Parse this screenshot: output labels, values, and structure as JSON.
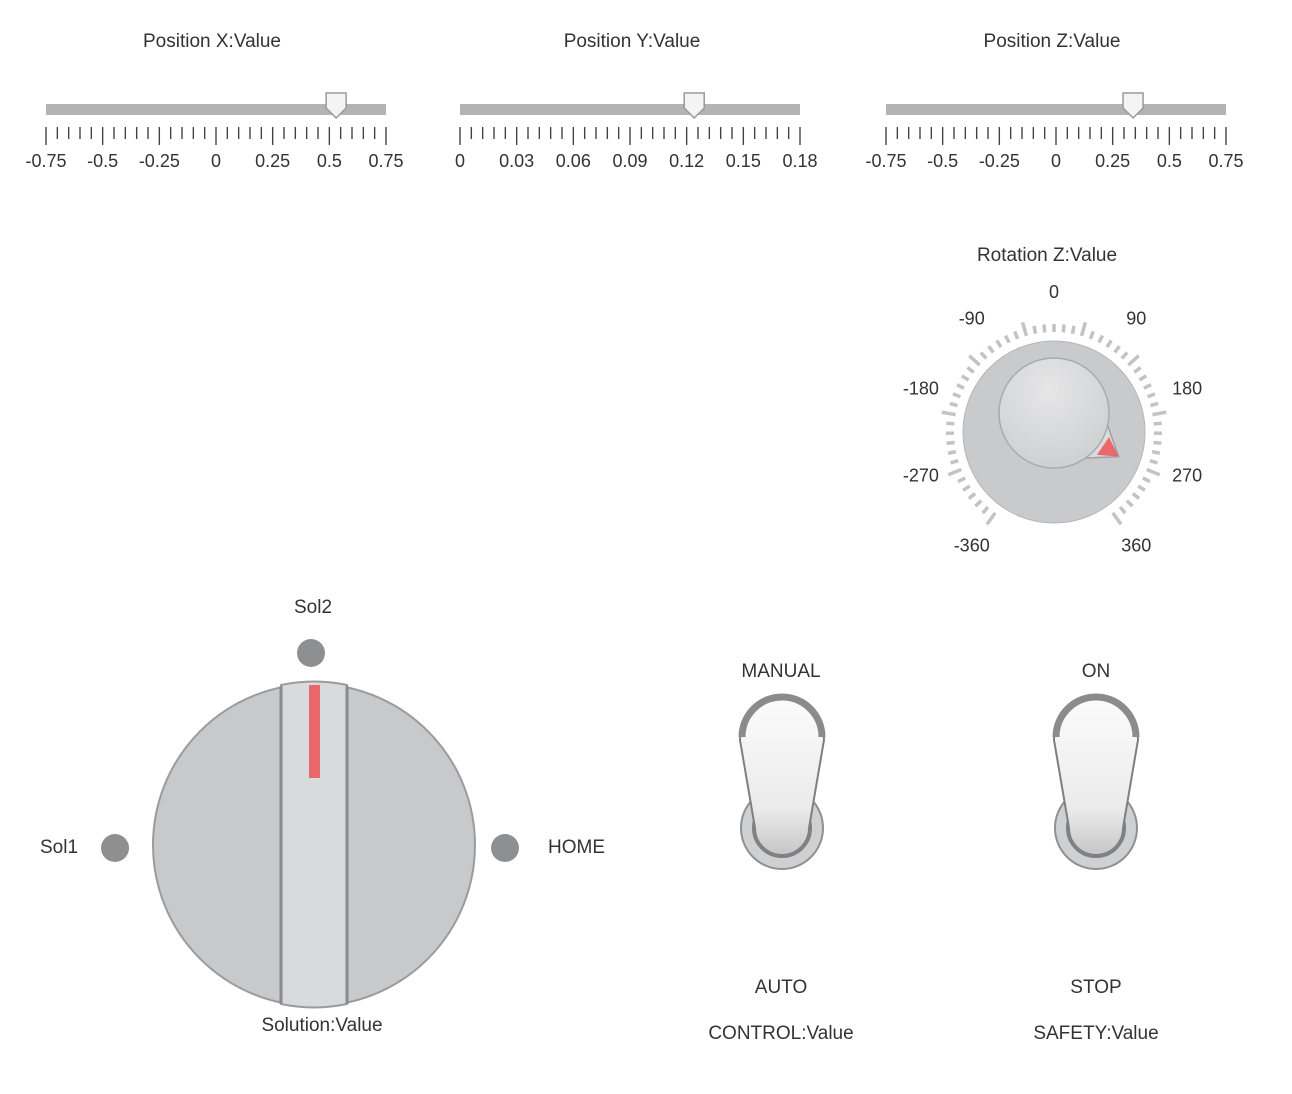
{
  "sliders": [
    {
      "id": "x",
      "label": "Position X:Value",
      "ticks": [
        "-0.75",
        "-0.5",
        "-0.25",
        "0",
        "0.25",
        "0.5",
        "0.75"
      ],
      "min": -0.75,
      "max": 0.75,
      "value": 0.53
    },
    {
      "id": "y",
      "label": "Position Y:Value",
      "ticks": [
        "0",
        "0.03",
        "0.06",
        "0.09",
        "0.12",
        "0.15",
        "0.18"
      ],
      "min": 0,
      "max": 0.18,
      "value": 0.124
    },
    {
      "id": "z",
      "label": "Position Z:Value",
      "ticks": [
        "-0.75",
        "-0.5",
        "-0.25",
        "0",
        "0.25",
        "0.5",
        "0.75"
      ],
      "min": -0.75,
      "max": 0.75,
      "value": 0.34
    }
  ],
  "rotation": {
    "label": "Rotation Z:Value",
    "min": -360,
    "max": 360,
    "value": 310,
    "scale_labels": [
      "-360",
      "-270",
      "-180",
      "-90",
      "0",
      "90",
      "180",
      "270",
      "360"
    ]
  },
  "solution": {
    "label": "Solution:Value",
    "positions": {
      "left": "Sol1",
      "top": "Sol2",
      "right": "HOME"
    },
    "selected": "Sol2"
  },
  "control": {
    "label": "CONTROL:Value",
    "top": "MANUAL",
    "bottom": "AUTO",
    "state": "MANUAL"
  },
  "safety": {
    "label": "SAFETY:Value",
    "top": "ON",
    "bottom": "STOP",
    "state": "ON"
  },
  "colors": {
    "accent": "#e8686b",
    "track": "#b3b3b3",
    "knob": "#c8c9cb",
    "tick": "#444444"
  }
}
